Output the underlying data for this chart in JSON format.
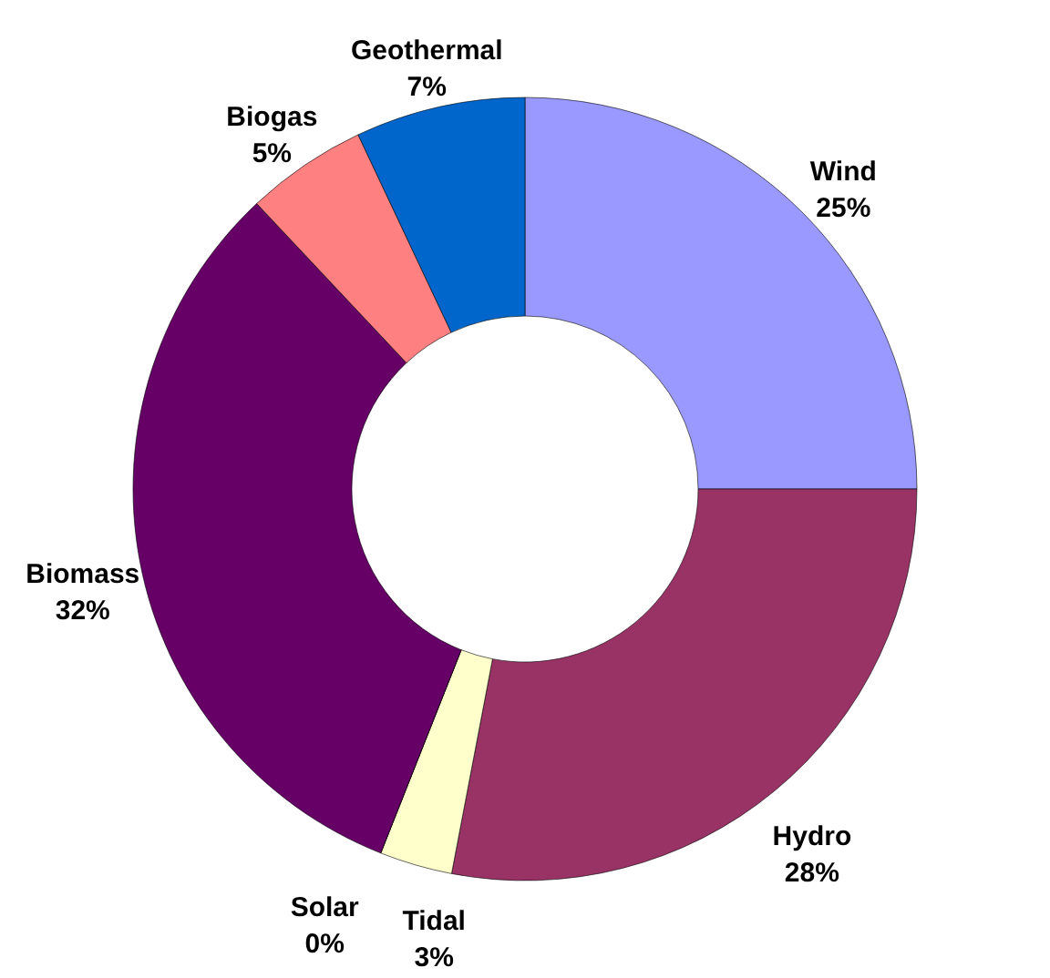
{
  "chart_data": {
    "type": "donut",
    "categories": [
      "Wind",
      "Hydro",
      "Tidal",
      "Solar",
      "Biomass",
      "Biogas",
      "Geothermal"
    ],
    "values": [
      25,
      28,
      3,
      0,
      32,
      5,
      7
    ],
    "value_labels": [
      "25%",
      "28%",
      "3%",
      "0%",
      "32%",
      "5%",
      "7%"
    ],
    "colors": [
      "#9999ff",
      "#993366",
      "#ffffcc",
      "#ccffff",
      "#660066",
      "#ff8080",
      "#0066cc"
    ]
  }
}
